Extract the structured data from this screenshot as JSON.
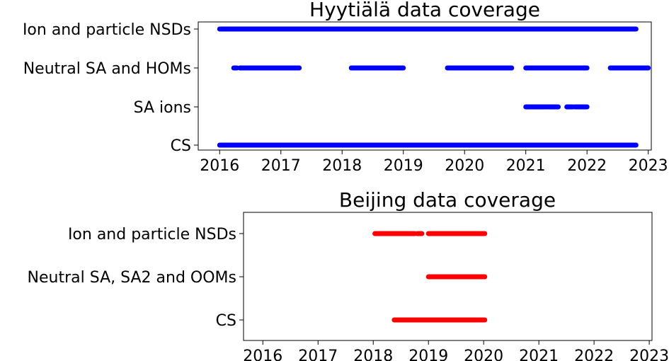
{
  "chart_data": [
    {
      "type": "scatter",
      "title": "Hyytiälä data coverage",
      "xlabel": "",
      "ylabel": "",
      "xlim": [
        2015.65,
        2023.05
      ],
      "x_ticks": [
        2016,
        2017,
        2018,
        2019,
        2020,
        2021,
        2022,
        2023
      ],
      "x_tick_labels": [
        "2016",
        "2017",
        "2018",
        "2019",
        "2020",
        "2021",
        "2022",
        "2023"
      ],
      "categories": [
        "Ion and particle NSDs",
        "Neutral SA and HOMs",
        "SA ions",
        "CS"
      ],
      "marker_color": "#0000ff",
      "grid": false,
      "series": [
        {
          "category": "Ion and particle NSDs",
          "intervals": [
            [
              2016.0,
              2022.8
            ]
          ]
        },
        {
          "category": "Neutral SA and HOMs",
          "intervals": [
            [
              2016.23,
              2016.28
            ],
            [
              2016.33,
              2017.3
            ],
            [
              2018.15,
              2019.0
            ],
            [
              2019.72,
              2020.77
            ],
            [
              2021.0,
              2022.0
            ],
            [
              2022.38,
              2023.0
            ]
          ]
        },
        {
          "category": "SA ions",
          "intervals": [
            [
              2021.0,
              2021.35
            ],
            [
              2021.37,
              2021.53
            ],
            [
              2021.67,
              2021.77
            ],
            [
              2021.8,
              2022.0
            ]
          ]
        },
        {
          "category": "CS",
          "intervals": [
            [
              2016.0,
              2022.8
            ]
          ]
        }
      ]
    },
    {
      "type": "scatter",
      "title": "Beijing data coverage",
      "xlabel": "",
      "ylabel": "",
      "xlim": [
        2015.65,
        2023.05
      ],
      "x_ticks": [
        2016,
        2017,
        2018,
        2019,
        2020,
        2021,
        2022,
        2023
      ],
      "x_tick_labels": [
        "2016",
        "2017",
        "2018",
        "2019",
        "2020",
        "2021",
        "2022",
        "2023"
      ],
      "categories": [
        "Ion and particle NSDs",
        "Neutral SA, SA2 and OOMs",
        "CS"
      ],
      "marker_color": "#ff0000",
      "grid": false,
      "series": [
        {
          "category": "Ion and particle NSDs",
          "intervals": [
            [
              2018.03,
              2018.75
            ],
            [
              2018.8,
              2018.88
            ],
            [
              2019.0,
              2020.02
            ]
          ]
        },
        {
          "category": "Neutral SA, SA2 and OOMs",
          "intervals": [
            [
              2019.0,
              2020.02
            ]
          ]
        },
        {
          "category": "CS",
          "intervals": [
            [
              2018.38,
              2020.02
            ]
          ]
        }
      ]
    }
  ]
}
